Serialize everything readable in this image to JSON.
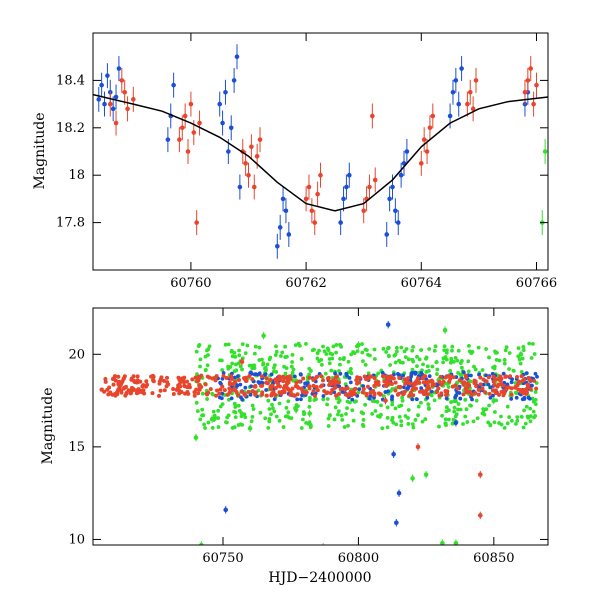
{
  "chart_data": [
    {
      "type": "scatter",
      "title": "",
      "xlabel": "",
      "ylabel": "Magnitude",
      "xlim": [
        60758.3,
        60766.2
      ],
      "ylim": [
        18.6,
        17.6
      ],
      "y_inverted": true,
      "xticks": [
        60760,
        60762,
        60764,
        60766
      ],
      "yticks": [
        17.8,
        18,
        18.2,
        18.4
      ],
      "error_bars": true,
      "series": [
        {
          "color": "#1a4fd6",
          "points": [
            [
              60758.4,
              18.32
            ],
            [
              60758.45,
              18.38
            ],
            [
              60758.5,
              18.3
            ],
            [
              60758.55,
              18.42
            ],
            [
              60758.6,
              18.35
            ],
            [
              60758.65,
              18.28
            ],
            [
              60758.7,
              18.33
            ],
            [
              60758.75,
              18.45
            ],
            [
              60759.6,
              18.15
            ],
            [
              60759.65,
              18.25
            ],
            [
              60759.7,
              18.38
            ],
            [
              60760.5,
              18.3
            ],
            [
              60760.55,
              18.22
            ],
            [
              60760.6,
              18.35
            ],
            [
              60760.65,
              18.1
            ],
            [
              60760.7,
              18.2
            ],
            [
              60760.75,
              18.4
            ],
            [
              60760.8,
              18.5
            ],
            [
              60760.85,
              17.95
            ],
            [
              60761.5,
              17.7
            ],
            [
              60761.55,
              17.78
            ],
            [
              60761.6,
              17.9
            ],
            [
              60761.65,
              17.85
            ],
            [
              60761.7,
              17.75
            ],
            [
              60762.6,
              17.8
            ],
            [
              60762.65,
              17.9
            ],
            [
              60762.7,
              17.95
            ],
            [
              60762.75,
              18.0
            ],
            [
              60763.4,
              17.75
            ],
            [
              60763.45,
              17.9
            ],
            [
              60763.5,
              17.95
            ],
            [
              60763.55,
              17.85
            ],
            [
              60763.6,
              17.8
            ],
            [
              60763.65,
              18.0
            ],
            [
              60763.7,
              18.05
            ],
            [
              60763.75,
              18.1
            ],
            [
              60764.5,
              18.25
            ],
            [
              60764.55,
              18.35
            ],
            [
              60764.6,
              18.4
            ],
            [
              60764.65,
              18.3
            ],
            [
              60764.7,
              18.45
            ],
            [
              60765.8,
              18.3
            ],
            [
              60765.85,
              18.35
            ]
          ]
        },
        {
          "color": "#e8452c",
          "points": [
            [
              60758.6,
              18.3
            ],
            [
              60758.7,
              18.22
            ],
            [
              60758.8,
              18.4
            ],
            [
              60758.85,
              18.35
            ],
            [
              60758.9,
              18.28
            ],
            [
              60759.0,
              18.32
            ],
            [
              60759.8,
              18.15
            ],
            [
              60759.85,
              18.2
            ],
            [
              60759.9,
              18.25
            ],
            [
              60759.95,
              18.1
            ],
            [
              60760.0,
              18.3
            ],
            [
              60760.05,
              18.18
            ],
            [
              60760.1,
              17.8
            ],
            [
              60760.15,
              18.22
            ],
            [
              60760.9,
              18.1
            ],
            [
              60760.95,
              18.05
            ],
            [
              60761.0,
              18.0
            ],
            [
              60761.05,
              18.12
            ],
            [
              60761.1,
              17.95
            ],
            [
              60761.15,
              18.08
            ],
            [
              60761.2,
              18.15
            ],
            [
              60762.0,
              17.9
            ],
            [
              60762.05,
              17.95
            ],
            [
              60762.1,
              17.85
            ],
            [
              60762.15,
              17.8
            ],
            [
              60762.2,
              17.92
            ],
            [
              60762.25,
              18.0
            ],
            [
              60763.0,
              17.85
            ],
            [
              60763.05,
              17.9
            ],
            [
              60763.1,
              17.95
            ],
            [
              60763.15,
              18.25
            ],
            [
              60763.2,
              17.98
            ],
            [
              60764.0,
              18.05
            ],
            [
              60764.05,
              18.15
            ],
            [
              60764.1,
              18.1
            ],
            [
              60764.15,
              18.2
            ],
            [
              60764.2,
              18.25
            ],
            [
              60764.8,
              18.3
            ],
            [
              60764.85,
              18.35
            ],
            [
              60764.9,
              18.28
            ],
            [
              60764.95,
              18.4
            ],
            [
              60765.8,
              18.35
            ],
            [
              60765.85,
              18.4
            ],
            [
              60765.9,
              18.45
            ],
            [
              60765.95,
              18.3
            ],
            [
              60766.0,
              18.38
            ]
          ]
        },
        {
          "color": "#33e02c",
          "points": [
            [
              60766.1,
              17.8
            ],
            [
              60766.15,
              18.1
            ]
          ]
        },
        {
          "color": "#000000",
          "type": "line",
          "points": [
            [
              60758.3,
              18.34
            ],
            [
              60759,
              18.3
            ],
            [
              60759.5,
              18.27
            ],
            [
              60760,
              18.22
            ],
            [
              60760.5,
              18.16
            ],
            [
              60761,
              18.08
            ],
            [
              60761.5,
              17.97
            ],
            [
              60762,
              17.88
            ],
            [
              60762.5,
              17.85
            ],
            [
              60763,
              17.88
            ],
            [
              60763.5,
              17.98
            ],
            [
              60764,
              18.12
            ],
            [
              60764.5,
              18.22
            ],
            [
              60765,
              18.28
            ],
            [
              60765.5,
              18.31
            ],
            [
              60766.2,
              18.33
            ]
          ]
        }
      ]
    },
    {
      "type": "scatter",
      "title": "",
      "xlabel": "HJD−2400000",
      "ylabel": "Magnitude",
      "xlim": [
        60702,
        60870
      ],
      "ylim": [
        22.5,
        9.7
      ],
      "y_inverted": true,
      "xticks": [
        60750,
        60800,
        60850
      ],
      "yticks": [
        10,
        15,
        20
      ],
      "error_bars": true,
      "series": [
        {
          "color": "#1a4fd6",
          "points": [
            [
              60751,
              11.6
            ],
            [
              60814,
              10.9
            ],
            [
              60815,
              12.5
            ],
            [
              60813,
              14.6
            ],
            [
              60811,
              21.6
            ],
            [
              60845,
              18.1
            ],
            [
              60836,
              16.3
            ]
          ]
        },
        {
          "color": "#e8452c",
          "points": [
            [
              60845,
              11.3
            ],
            [
              60845,
              13.5
            ],
            [
              60822,
              15.0
            ],
            [
              60757,
              19.6
            ],
            [
              60810,
              17.5
            ]
          ]
        },
        {
          "color": "#33e02c",
          "points": [
            [
              60742,
              9.7
            ],
            [
              60787,
              9.6
            ],
            [
              60831,
              9.8
            ],
            [
              60836,
              9.8
            ],
            [
              60740,
              15.5
            ],
            [
              60820,
              13.3
            ],
            [
              60825,
              13.5
            ],
            [
              60760,
              16.0
            ],
            [
              60746,
              16.5
            ],
            [
              60782,
              16.8
            ],
            [
              60777,
              17.0
            ],
            [
              60800,
              20.5
            ],
            [
              60765,
              21.0
            ],
            [
              60860,
              20.0
            ],
            [
              60832,
              21.3
            ],
            [
              60850,
              17.5
            ]
          ]
        },
        {
          "color": "#e8452c",
          "type": "band",
          "x_range": [
            60705,
            60866
          ],
          "y_center": 18.3
        }
      ]
    }
  ]
}
